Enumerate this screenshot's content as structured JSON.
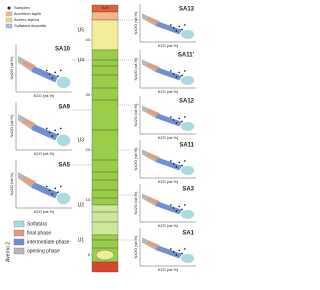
{
  "legend": {
    "items": [
      "Samples",
      "Accretion lapilli",
      "Averno tephra",
      "Solfatara deposits"
    ]
  },
  "phase_legend": {
    "group": "Averno 2",
    "items": [
      "Solfatara",
      "final phase",
      "intermediate phase",
      "opening phase"
    ]
  },
  "column": {
    "top": "Soil",
    "units": [
      "U5",
      "U4",
      "U3",
      "U2",
      "U1"
    ],
    "depths": [
      "40",
      "30",
      "20",
      "10",
      "0"
    ]
  },
  "plots": [
    {
      "label": "SA10",
      "x_label": "K2O (wt.%)",
      "y_label": "Na2O (wt.%)"
    },
    {
      "label": "SA9",
      "x_label": "K2O (wt.%)",
      "y_label": "Na2O (wt.%)"
    },
    {
      "label": "SA5",
      "x_label": "K2O (wt.%)",
      "y_label": "Na2O (wt.%)"
    },
    {
      "label": "SA13",
      "x_label": "K2O (wt.%)",
      "y_label": "Na2O (wt.%)"
    },
    {
      "label": "SA11'",
      "x_label": "K2O (wt.%)",
      "y_label": "Na2O (wt.%)"
    },
    {
      "label": "SA12",
      "x_label": "K2O (wt.%)",
      "y_label": "Na2O (wt.%)"
    },
    {
      "label": "SA11",
      "x_label": "K2O (wt.%)",
      "y_label": "Na2O (wt.%)"
    },
    {
      "label": "SA3",
      "x_label": "K2O (wt.%)",
      "y_label": "Na2O (wt.%)"
    },
    {
      "label": "SA1",
      "x_label": "K2O (wt.%)",
      "y_label": "Na2O (wt.%)"
    }
  ]
}
